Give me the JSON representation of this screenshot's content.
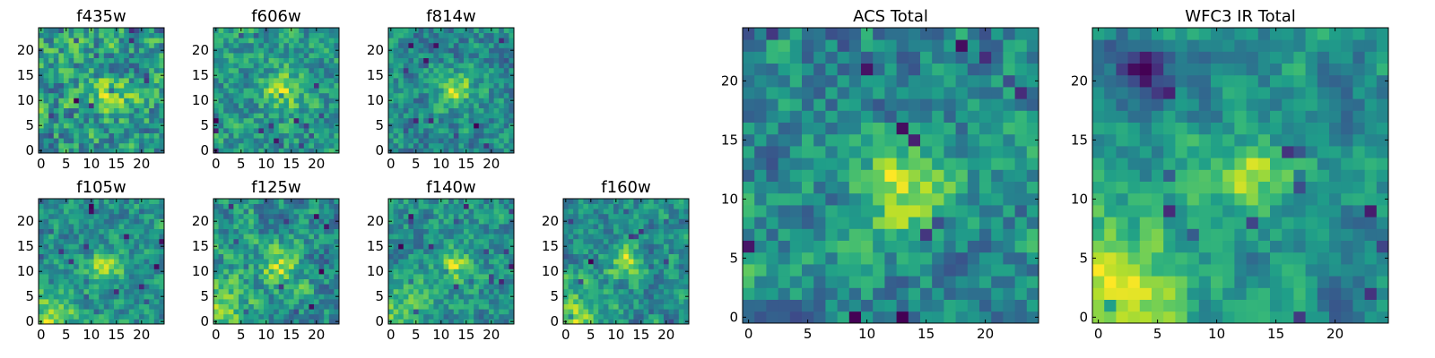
{
  "chart_data": [
    {
      "type": "heatmap",
      "title": "f435w",
      "colormap": "viridis",
      "grid_size": 25,
      "xlim": [
        0,
        24
      ],
      "ylim": [
        0,
        24
      ],
      "xticks": [
        "0",
        "5",
        "10",
        "15",
        "20"
      ],
      "yticks": [
        "0",
        "5",
        "10",
        "15",
        "20"
      ],
      "seed": 11,
      "noise": 0.55,
      "blob": {
        "center": [
          14,
          11
        ],
        "strength": 0.45
      },
      "corner_bright": 0.0
    },
    {
      "type": "heatmap",
      "title": "f606w",
      "colormap": "viridis",
      "grid_size": 25,
      "xlim": [
        0,
        24
      ],
      "ylim": [
        0,
        24
      ],
      "xticks": [
        "0",
        "5",
        "10",
        "15",
        "20"
      ],
      "yticks": [
        "0",
        "5",
        "10",
        "15",
        "20"
      ],
      "seed": 23,
      "noise": 0.5,
      "blob": {
        "center": [
          13,
          12
        ],
        "strength": 0.6
      },
      "corner_bright": 0.0
    },
    {
      "type": "heatmap",
      "title": "f814w",
      "colormap": "viridis",
      "grid_size": 25,
      "xlim": [
        0,
        24
      ],
      "ylim": [
        0,
        24
      ],
      "xticks": [
        "0",
        "5",
        "10",
        "15",
        "20"
      ],
      "yticks": [
        "0",
        "5",
        "10",
        "15",
        "20"
      ],
      "seed": 37,
      "noise": 0.5,
      "blob": {
        "center": [
          13,
          12
        ],
        "strength": 0.65
      },
      "corner_bright": 0.0
    },
    {
      "type": "heatmap",
      "title": "f105w",
      "colormap": "viridis",
      "grid_size": 25,
      "xlim": [
        0,
        24
      ],
      "ylim": [
        0,
        24
      ],
      "xticks": [
        "0",
        "5",
        "10",
        "15",
        "20"
      ],
      "yticks": [
        "0",
        "5",
        "10",
        "15",
        "20"
      ],
      "seed": 41,
      "noise": 0.4,
      "blob": {
        "center": [
          13,
          11
        ],
        "strength": 0.6
      },
      "corner_bright": 0.55
    },
    {
      "type": "heatmap",
      "title": "f125w",
      "colormap": "viridis",
      "grid_size": 25,
      "xlim": [
        0,
        24
      ],
      "ylim": [
        0,
        24
      ],
      "xticks": [
        "0",
        "5",
        "10",
        "15",
        "20"
      ],
      "yticks": [
        "0",
        "5",
        "10",
        "15",
        "20"
      ],
      "seed": 53,
      "noise": 0.45,
      "blob": {
        "center": [
          13,
          11
        ],
        "strength": 0.5
      },
      "corner_bright": 0.4
    },
    {
      "type": "heatmap",
      "title": "f140w",
      "colormap": "viridis",
      "grid_size": 25,
      "xlim": [
        0,
        24
      ],
      "ylim": [
        0,
        24
      ],
      "xticks": [
        "0",
        "5",
        "10",
        "15",
        "20"
      ],
      "yticks": [
        "0",
        "5",
        "10",
        "15",
        "20"
      ],
      "seed": 67,
      "noise": 0.45,
      "blob": {
        "center": [
          13,
          11
        ],
        "strength": 0.55
      },
      "corner_bright": 0.45
    },
    {
      "type": "heatmap",
      "title": "f160w",
      "colormap": "viridis",
      "grid_size": 25,
      "xlim": [
        0,
        24
      ],
      "ylim": [
        0,
        24
      ],
      "xticks": [
        "0",
        "5",
        "10",
        "15",
        "20"
      ],
      "yticks": [
        "0",
        "5",
        "10",
        "15",
        "20"
      ],
      "seed": 79,
      "noise": 0.4,
      "blob": {
        "center": [
          12,
          12
        ],
        "strength": 0.55
      },
      "corner_bright": 0.6
    },
    {
      "type": "heatmap",
      "title": "ACS Total",
      "colormap": "viridis",
      "grid_size": 25,
      "xlim": [
        0,
        24
      ],
      "ylim": [
        0,
        24
      ],
      "xticks": [
        "0",
        "5",
        "10",
        "15",
        "20"
      ],
      "yticks": [
        "0",
        "5",
        "10",
        "15",
        "20"
      ],
      "seed": 97,
      "noise": 0.42,
      "blob": {
        "center": [
          13,
          11
        ],
        "strength": 0.65
      },
      "corner_bright": 0.1
    },
    {
      "type": "heatmap",
      "title": "WFC3 IR Total",
      "colormap": "viridis",
      "grid_size": 25,
      "xlim": [
        0,
        24
      ],
      "ylim": [
        0,
        24
      ],
      "xticks": [
        "0",
        "5",
        "10",
        "15",
        "20"
      ],
      "yticks": [
        "0",
        "5",
        "10",
        "15",
        "20"
      ],
      "seed": 131,
      "noise": 0.25,
      "blob": {
        "center": [
          13,
          12
        ],
        "strength": 0.55
      },
      "corner_bright": 0.7,
      "dark_region": {
        "center": [
          4,
          21
        ],
        "strength": 0.6
      }
    }
  ]
}
